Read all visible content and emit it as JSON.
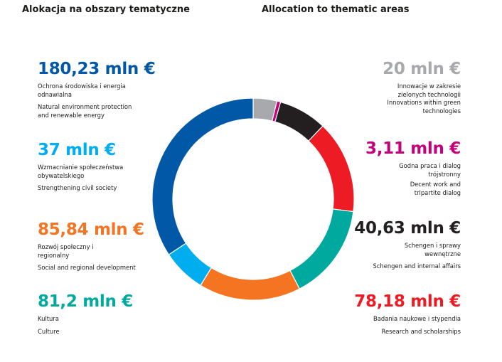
{
  "headers": {
    "polish": "Alokacja na obszary tematyczne",
    "english": "Allocation to thematic areas"
  },
  "chart_data": {
    "type": "pie",
    "donut": true,
    "unit": "mln €",
    "slices": [
      {
        "id": "environment",
        "value_label": "180,23 mln €",
        "value": 180.23,
        "label_pl": "Ochrona środowiska i energia odnawialna",
        "label_en": "Natural environment protection and renewable energy",
        "color": "#0058a6"
      },
      {
        "id": "civil",
        "value_label": "37 mln €",
        "value": 37,
        "label_pl": "Wzmacnianie społeczeństwa obywatelskiego",
        "label_en": "Strengthening civil society",
        "color": "#00aeef"
      },
      {
        "id": "social",
        "value_label": "85,84 mln €",
        "value": 85.84,
        "label_pl": "Rozwój społeczny i regionalny",
        "label_en": "Social and regional development",
        "color": "#f47421"
      },
      {
        "id": "culture",
        "value_label": "81,2 mln €",
        "value": 81.2,
        "label_pl": "Kultura",
        "label_en": "Culture",
        "color": "#00a99d"
      },
      {
        "id": "green",
        "value_label": "20 mln €",
        "value": 20,
        "label_pl": "Innowacje w zakresie zielonych technologii",
        "label_en": "Innovations within green technologies",
        "color": "#a7a9ac"
      },
      {
        "id": "decent",
        "value_label": "3,11 mln €",
        "value": 3.11,
        "label_pl": "Godna praca i dialog trójstronny",
        "label_en": "Decent work and tripartite dialog",
        "color": "#c4007a"
      },
      {
        "id": "schengen",
        "value_label": "40,63 mln €",
        "value": 40.63,
        "label_pl": "Schengen i sprawy wewnętrzne",
        "label_en": "Schengen and internal affairs",
        "color": "#231f20"
      },
      {
        "id": "research",
        "value_label": "78,18 mln €",
        "value": 78.18,
        "label_pl": "Badania naukowe i stypendia",
        "label_en": "Research and scholarships",
        "color": "#ed1c24"
      }
    ],
    "clockwise_order": [
      "green",
      "decent",
      "schengen",
      "research",
      "culture",
      "social",
      "civil",
      "environment"
    ]
  }
}
